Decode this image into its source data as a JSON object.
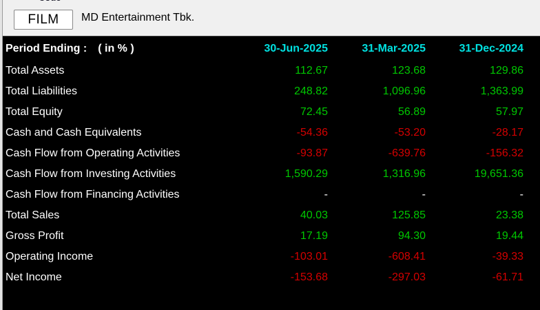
{
  "window": {
    "code_label": "Code",
    "code_value": "FILM",
    "company_name": "MD Entertainment Tbk."
  },
  "table": {
    "header": {
      "label_left": "Period Ending :",
      "label_unit": "( in % )",
      "periods": [
        "30-Jun-2025",
        "31-Mar-2025",
        "31-Dec-2024"
      ]
    },
    "rows": [
      {
        "label": "Total Assets",
        "values": [
          "112.67",
          "123.68",
          "129.86"
        ]
      },
      {
        "label": "Total Liabilities",
        "values": [
          "248.82",
          "1,096.96",
          "1,363.99"
        ]
      },
      {
        "label": "Total Equity",
        "values": [
          "72.45",
          "56.89",
          "57.97"
        ]
      },
      {
        "label": "Cash and Cash Equivalents",
        "values": [
          "-54.36",
          "-53.20",
          "-28.17"
        ]
      },
      {
        "label": "Cash Flow from Operating Activities",
        "values": [
          "-93.87",
          "-639.76",
          "-156.32"
        ]
      },
      {
        "label": "Cash Flow from Investing Activities",
        "values": [
          "1,590.29",
          "1,316.96",
          "19,651.36"
        ]
      },
      {
        "label": "Cash Flow from Financing Activities",
        "values": [
          "-",
          "-",
          "-"
        ]
      },
      {
        "label": "Total Sales",
        "values": [
          "40.03",
          "125.85",
          "23.38"
        ]
      },
      {
        "label": "Gross Profit",
        "values": [
          "17.19",
          "94.30",
          "19.44"
        ]
      },
      {
        "label": "Operating Income",
        "values": [
          "-103.01",
          "-608.41",
          "-39.33"
        ]
      },
      {
        "label": "Net Income",
        "values": [
          "-153.68",
          "-297.03",
          "-61.71"
        ]
      }
    ]
  },
  "colors": {
    "positive": "#00c800",
    "negative": "#d40000",
    "neutral": "#ffffff",
    "period_accent": "#00e0e0",
    "topbar_bg": "#f0f0f0",
    "table_bg": "#000000"
  }
}
